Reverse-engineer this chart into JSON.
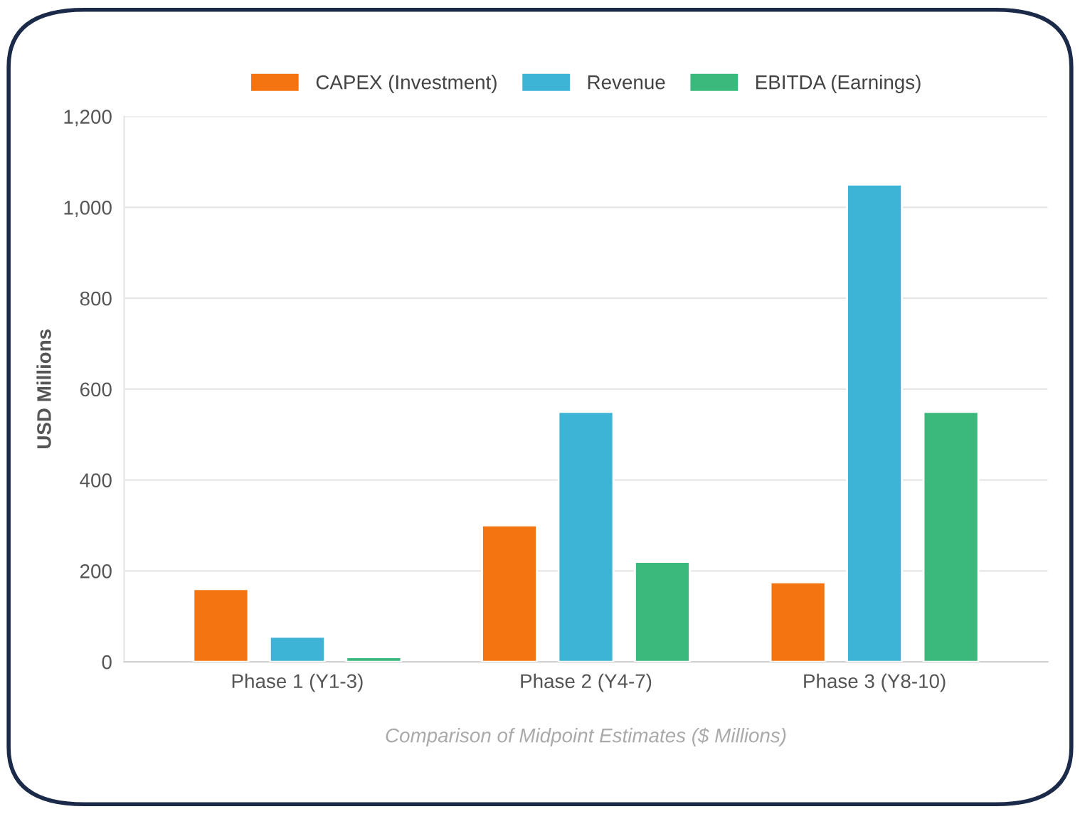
{
  "chart_data": {
    "type": "bar",
    "categories": [
      "Phase 1 (Y1-3)",
      "Phase 2 (Y4-7)",
      "Phase 3 (Y8-10)"
    ],
    "series": [
      {
        "name": "CAPEX (Investment)",
        "color": "#f47411",
        "values": [
          160,
          300,
          175
        ]
      },
      {
        "name": "Revenue",
        "color": "#3db3d6",
        "values": [
          55,
          550,
          1050
        ]
      },
      {
        "name": "EBITDA (Earnings)",
        "color": "#3bb87c",
        "values": [
          10,
          220,
          550
        ]
      }
    ],
    "ylabel": "USD Millions",
    "xlabel": "Comparison of Midpoint Estimates ($ Millions)",
    "ylim": [
      0,
      1200
    ],
    "yticks": [
      0,
      {
        "value": 200,
        "label": "200"
      },
      {
        "value": 400,
        "label": "400"
      },
      {
        "value": 600,
        "label": "600"
      },
      {
        "value": 800,
        "label": "800"
      },
      {
        "value": 1000,
        "label": "1,000"
      },
      {
        "value": 1200,
        "label": "1,200"
      }
    ],
    "grid": "y",
    "legend": "top"
  }
}
